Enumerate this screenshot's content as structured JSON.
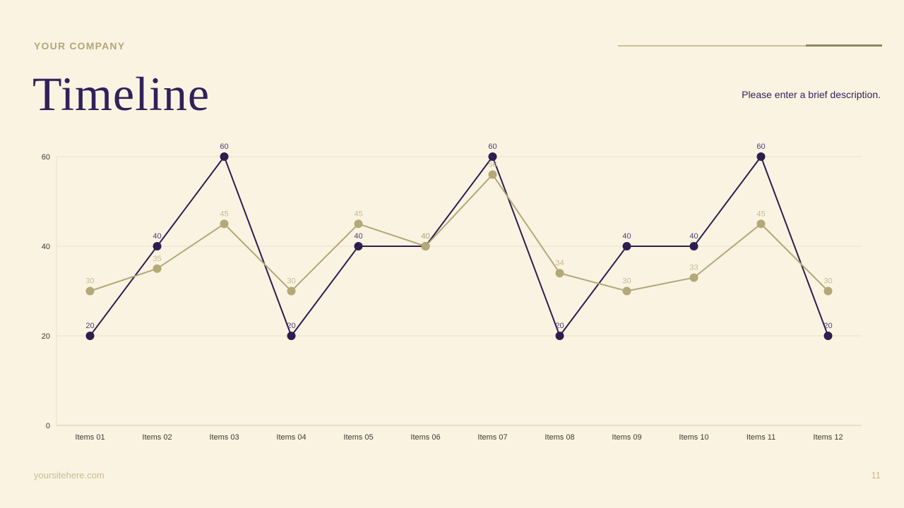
{
  "slide": {
    "company": "YOUR COMPANY",
    "title": "Timeline",
    "description": "Please enter a brief description.",
    "footer_site": "yoursitehere.com",
    "page_number": "11"
  },
  "colors": {
    "background": "#FBF3E1",
    "accent_khaki": "#B2A678",
    "accent_purple": "#2D1E4F",
    "grid": "#E9E0C6",
    "axis": "#D8CEA9"
  },
  "chart_data": {
    "type": "line",
    "categories": [
      "Items 01",
      "Items 02",
      "Items 03",
      "Items 04",
      "Items 05",
      "Items 06",
      "Items 07",
      "Items 08",
      "Items 09",
      "Items 10",
      "Items 11",
      "Items 12"
    ],
    "series": [
      {
        "name": "series-purple",
        "color": "#2D1E4F",
        "label_color": "#4A3B7C",
        "values": [
          20,
          40,
          60,
          20,
          40,
          40,
          60,
          20,
          40,
          40,
          60,
          20
        ]
      },
      {
        "name": "series-khaki",
        "color": "#B3A878",
        "label_color": "#C6BB90",
        "values": [
          30,
          35,
          45,
          30,
          45,
          40,
          56,
          34,
          30,
          33,
          45,
          30
        ]
      }
    ],
    "title": "Timeline",
    "xlabel": "",
    "ylabel": "",
    "ylim": [
      0,
      60
    ],
    "yticks": [
      0,
      20,
      40,
      60
    ],
    "grid": true,
    "legend": "none"
  }
}
